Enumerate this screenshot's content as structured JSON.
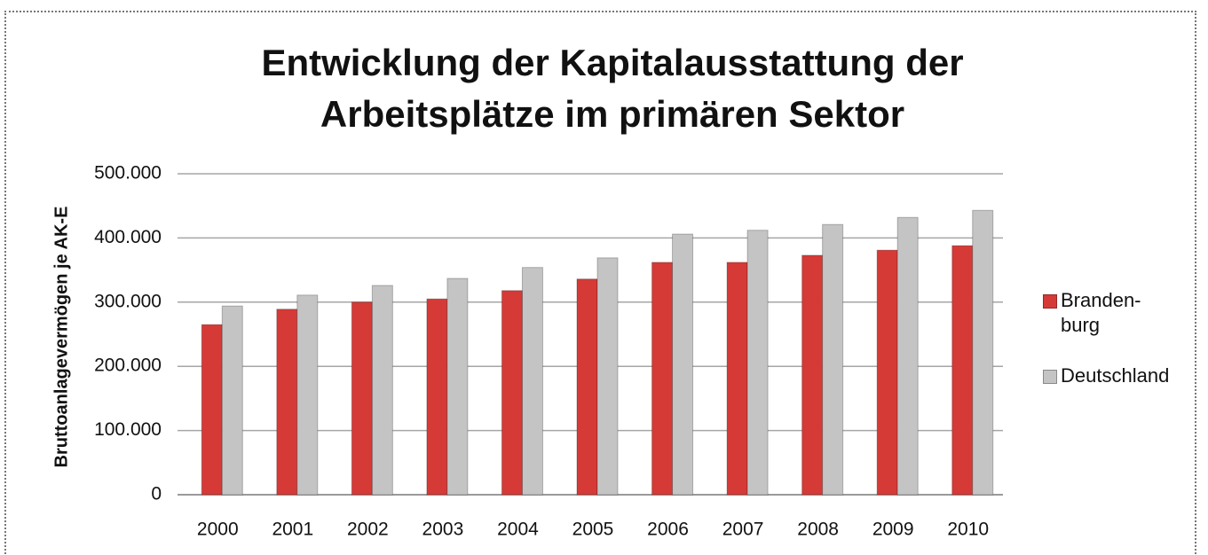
{
  "chart_data": {
    "type": "bar",
    "title": "Entwicklung der Kapitalausstattung der Arbeitsplätze im primären Sektor",
    "y_label": "Bruttoanlagevermögen je AK-E",
    "categories": [
      "2000",
      "2001",
      "2002",
      "2003",
      "2004",
      "2005",
      "2006",
      "2007",
      "2008",
      "2009",
      "2010"
    ],
    "series": [
      {
        "name": "Branden-burg",
        "color": "#d63a36",
        "values": [
          265000,
          289000,
          300000,
          305000,
          318000,
          336000,
          362000,
          362000,
          373000,
          381000,
          388000
        ]
      },
      {
        "name": "Deutschland",
        "color": "#c4c4c4",
        "values": [
          294000,
          311000,
          326000,
          337000,
          354000,
          369000,
          406000,
          412000,
          421000,
          432000,
          443000
        ]
      }
    ],
    "ylim": [
      0,
      500000
    ],
    "yticks": [
      0,
      {
        "value": 100000,
        "label": "100.000"
      },
      {
        "value": 200000,
        "label": "200.000"
      },
      {
        "value": 300000,
        "label": "300.000"
      },
      {
        "value": 400000,
        "label": "400.000"
      },
      {
        "value": 500000,
        "label": "500.000"
      }
    ],
    "grid": true,
    "legend": "right"
  }
}
